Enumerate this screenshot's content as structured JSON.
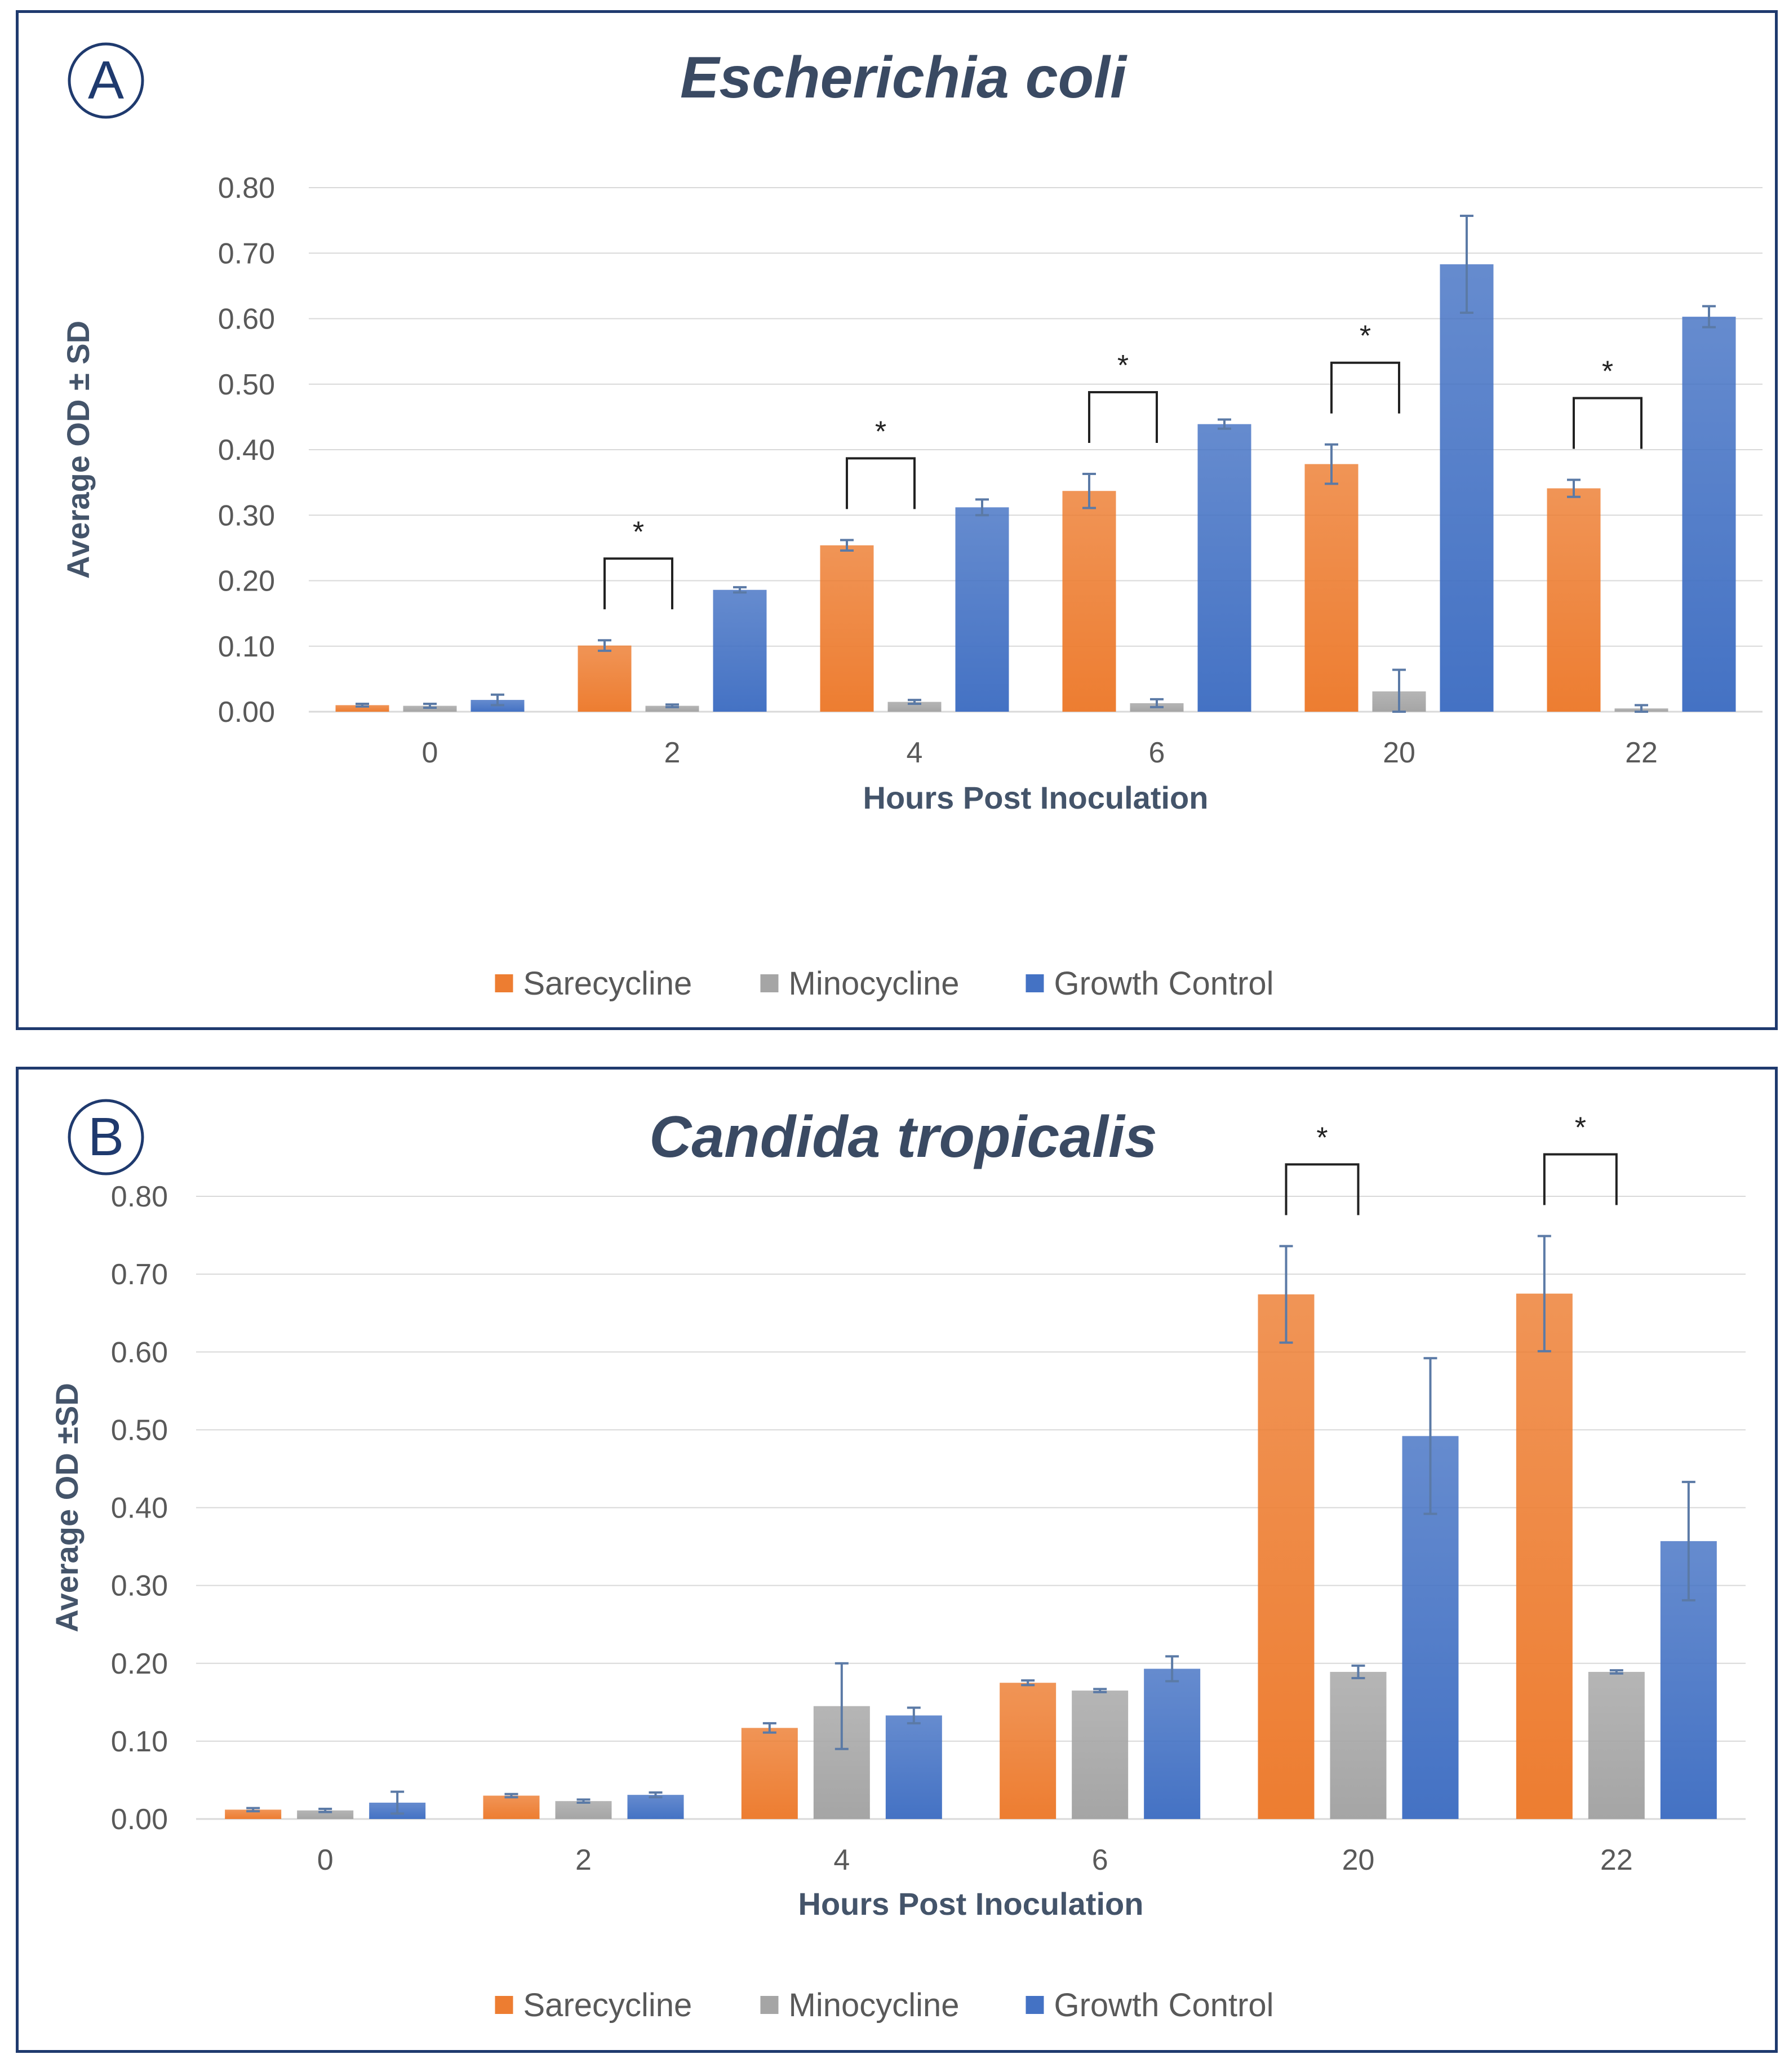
{
  "colors": {
    "sarecycline": "#ed7d31",
    "minocycline": "#a5a5a5",
    "growth_control": "#4472c4",
    "grid": "#d9d9d9",
    "error_bar": "#5b7aa6"
  },
  "chart_data": [
    {
      "type": "bar",
      "panel_label": "A",
      "title": "Escherichia coli",
      "xlabel": "Hours Post Inoculation",
      "ylabel": "Average OD ± SD",
      "ylim": [
        0,
        0.8
      ],
      "yticks": [
        "0.00",
        "0.10",
        "0.20",
        "0.30",
        "0.40",
        "0.50",
        "0.60",
        "0.70",
        "0.80"
      ],
      "grid": true,
      "legend_position": "bottom-center",
      "categories": [
        "0",
        "2",
        "4",
        "6",
        "20",
        "22"
      ],
      "series": [
        {
          "name": "Sarecycline",
          "color": "sarecycline",
          "values": [
            0.01,
            0.101,
            0.254,
            0.337,
            0.378,
            0.341
          ],
          "errors": [
            0.002,
            0.008,
            0.008,
            0.026,
            0.03,
            0.013
          ]
        },
        {
          "name": "Minocycline",
          "color": "minocycline",
          "values": [
            0.009,
            0.009,
            0.015,
            0.013,
            0.031,
            0.005
          ],
          "errors": [
            0.003,
            0.002,
            0.003,
            0.006,
            0.033,
            0.005
          ]
        },
        {
          "name": "Growth Control",
          "color": "growth_control",
          "values": [
            0.018,
            0.186,
            0.312,
            0.439,
            0.683,
            0.603
          ],
          "errors": [
            0.008,
            0.004,
            0.012,
            0.007,
            0.074,
            0.016
          ]
        }
      ],
      "significance": [
        {
          "category": "2",
          "from": "Sarecycline",
          "to": "Minocycline",
          "label": "*"
        },
        {
          "category": "4",
          "from": "Sarecycline",
          "to": "Minocycline",
          "label": "*"
        },
        {
          "category": "6",
          "from": "Sarecycline",
          "to": "Minocycline",
          "label": "*"
        },
        {
          "category": "20",
          "from": "Sarecycline",
          "to": "Minocycline",
          "label": "*"
        },
        {
          "category": "22",
          "from": "Sarecycline",
          "to": "Minocycline",
          "label": "*"
        }
      ]
    },
    {
      "type": "bar",
      "panel_label": "B",
      "title": "Candida tropicalis",
      "xlabel": "Hours Post Inoculation",
      "ylabel": "Average OD ±SD",
      "ylim": [
        0,
        0.8
      ],
      "yticks": [
        "0.00",
        "0.10",
        "0.20",
        "0.30",
        "0.40",
        "0.50",
        "0.60",
        "0.70",
        "0.80"
      ],
      "grid": true,
      "legend_position": "bottom-center",
      "categories": [
        "0",
        "2",
        "4",
        "6",
        "20",
        "22"
      ],
      "series": [
        {
          "name": "Sarecycline",
          "color": "sarecycline",
          "values": [
            0.012,
            0.03,
            0.117,
            0.175,
            0.674,
            0.675
          ],
          "errors": [
            0.002,
            0.002,
            0.006,
            0.003,
            0.062,
            0.074
          ]
        },
        {
          "name": "Minocycline",
          "color": "minocycline",
          "values": [
            0.011,
            0.023,
            0.145,
            0.165,
            0.189,
            0.189
          ],
          "errors": [
            0.002,
            0.002,
            0.055,
            0.002,
            0.008,
            0.002
          ]
        },
        {
          "name": "Growth Control",
          "color": "growth_control",
          "values": [
            0.021,
            0.031,
            0.133,
            0.193,
            0.492,
            0.357
          ],
          "errors": [
            0.014,
            0.003,
            0.01,
            0.016,
            0.1,
            0.076
          ]
        }
      ],
      "significance": [
        {
          "category": "20",
          "from": "Sarecycline",
          "to": "Minocycline",
          "label": "*"
        },
        {
          "category": "22",
          "from": "Sarecycline",
          "to": "Minocycline",
          "label": "*"
        }
      ]
    }
  ]
}
